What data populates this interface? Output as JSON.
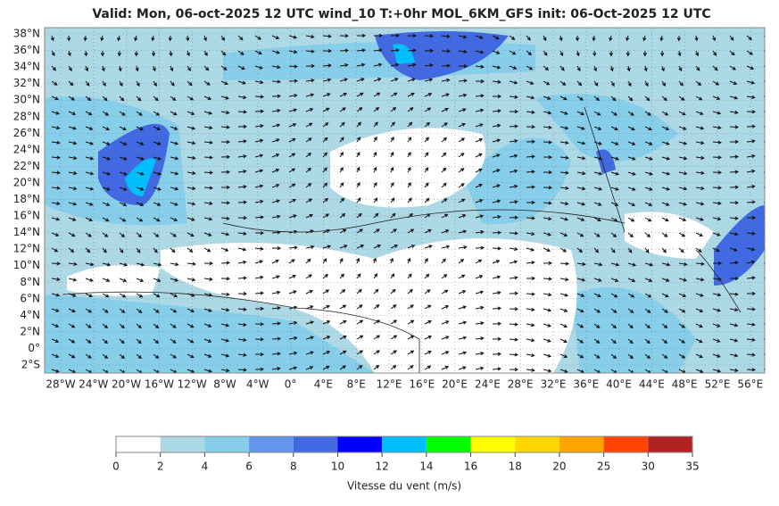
{
  "title": "Valid: Mon, 06-oct-2025   12 UTC   wind_10   T:+0hr   MOL_6KM_GFS   init: 06-Oct-2025    12 UTC",
  "map": {
    "lat_labels": [
      "38°N",
      "36°N",
      "34°N",
      "32°N",
      "30°N",
      "28°N",
      "26°N",
      "24°N",
      "22°N",
      "20°N",
      "18°N",
      "16°N",
      "14°N",
      "12°N",
      "10°N",
      "8°N",
      "6°N",
      "4°N",
      "2°N",
      "0°",
      "2°S"
    ],
    "lon_labels": [
      "28°W",
      "24°W",
      "20°W",
      "16°W",
      "12°W",
      "8°W",
      "4°W",
      "0°",
      "4°E",
      "8°E",
      "12°E",
      "16°E",
      "20°E",
      "24°E",
      "28°E",
      "32°E",
      "36°E",
      "40°E",
      "44°E",
      "48°E",
      "52°E",
      "56°E"
    ]
  },
  "colorbar": {
    "ticks": [
      0,
      2,
      4,
      6,
      8,
      10,
      12,
      14,
      16,
      18,
      20,
      25,
      30,
      35
    ],
    "colors": [
      "#ffffff",
      "#add8e6",
      "#87ceeb",
      "#6495ed",
      "#4169e1",
      "#0000ff",
      "#00bfff",
      "#00ff00",
      "#ffff00",
      "#ffd700",
      "#ffa500",
      "#ff4500",
      "#b22222"
    ],
    "label": "Vitesse du vent (m/s)"
  }
}
